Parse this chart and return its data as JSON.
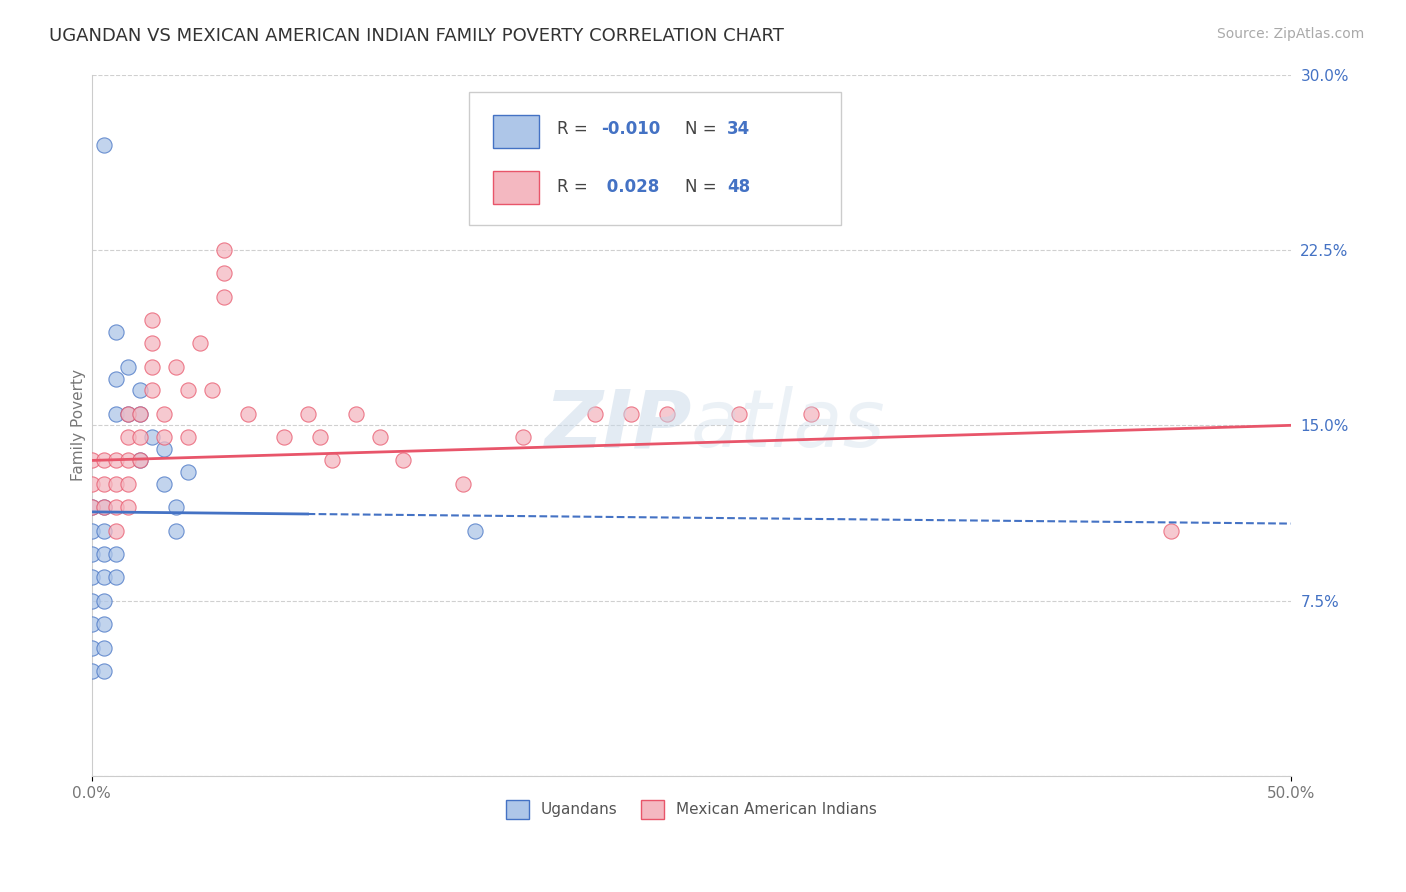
{
  "title": "UGANDAN VS MEXICAN AMERICAN INDIAN FAMILY POVERTY CORRELATION CHART",
  "source": "Source: ZipAtlas.com",
  "ylabel": "Family Poverty",
  "watermark": "ZIPatlas",
  "xlim": [
    0.0,
    0.5
  ],
  "ylim": [
    0.0,
    0.3
  ],
  "xtick_labels": [
    "0.0%",
    "50.0%"
  ],
  "ytick_labels": [
    "",
    "7.5%",
    "15.0%",
    "22.5%",
    "30.0%"
  ],
  "yticks": [
    0.0,
    0.075,
    0.15,
    0.225,
    0.3
  ],
  "ugandan_color": "#aec6e8",
  "mexican_color": "#f4b8c1",
  "ugandan_line_color": "#4472c4",
  "mexican_line_color": "#e8556a",
  "background_color": "#ffffff",
  "grid_color": "#d0d0d0",
  "ugandan_x": [
    0.005,
    0.01,
    0.01,
    0.01,
    0.015,
    0.015,
    0.02,
    0.02,
    0.02,
    0.025,
    0.03,
    0.03,
    0.035,
    0.035,
    0.04,
    0.0,
    0.0,
    0.0,
    0.0,
    0.0,
    0.0,
    0.0,
    0.0,
    0.005,
    0.005,
    0.005,
    0.005,
    0.005,
    0.005,
    0.005,
    0.005,
    0.01,
    0.01,
    0.16
  ],
  "ugandan_y": [
    0.27,
    0.19,
    0.17,
    0.155,
    0.175,
    0.155,
    0.165,
    0.155,
    0.135,
    0.145,
    0.14,
    0.125,
    0.115,
    0.105,
    0.13,
    0.115,
    0.105,
    0.095,
    0.085,
    0.075,
    0.065,
    0.055,
    0.045,
    0.115,
    0.105,
    0.095,
    0.085,
    0.075,
    0.065,
    0.055,
    0.045,
    0.095,
    0.085,
    0.105
  ],
  "mexican_x": [
    0.0,
    0.0,
    0.0,
    0.005,
    0.005,
    0.005,
    0.01,
    0.01,
    0.01,
    0.01,
    0.015,
    0.015,
    0.015,
    0.015,
    0.015,
    0.02,
    0.02,
    0.02,
    0.025,
    0.025,
    0.025,
    0.025,
    0.03,
    0.03,
    0.035,
    0.04,
    0.04,
    0.045,
    0.05,
    0.055,
    0.055,
    0.055,
    0.065,
    0.08,
    0.09,
    0.095,
    0.1,
    0.11,
    0.12,
    0.13,
    0.155,
    0.18,
    0.21,
    0.225,
    0.24,
    0.27,
    0.3,
    0.45
  ],
  "mexican_y": [
    0.135,
    0.125,
    0.115,
    0.135,
    0.125,
    0.115,
    0.135,
    0.125,
    0.115,
    0.105,
    0.155,
    0.145,
    0.135,
    0.125,
    0.115,
    0.155,
    0.145,
    0.135,
    0.195,
    0.185,
    0.175,
    0.165,
    0.155,
    0.145,
    0.175,
    0.165,
    0.145,
    0.185,
    0.165,
    0.225,
    0.215,
    0.205,
    0.155,
    0.145,
    0.155,
    0.145,
    0.135,
    0.155,
    0.145,
    0.135,
    0.125,
    0.145,
    0.155,
    0.155,
    0.155,
    0.155,
    0.155,
    0.105
  ],
  "title_fontsize": 13,
  "axis_label_fontsize": 11,
  "tick_fontsize": 11,
  "source_fontsize": 10,
  "ug_line_x0": 0.0,
  "ug_line_x1": 0.5,
  "ug_line_y0": 0.113,
  "ug_line_y1": 0.108,
  "mx_line_x0": 0.0,
  "mx_line_x1": 0.5,
  "mx_line_y0": 0.135,
  "mx_line_y1": 0.15
}
